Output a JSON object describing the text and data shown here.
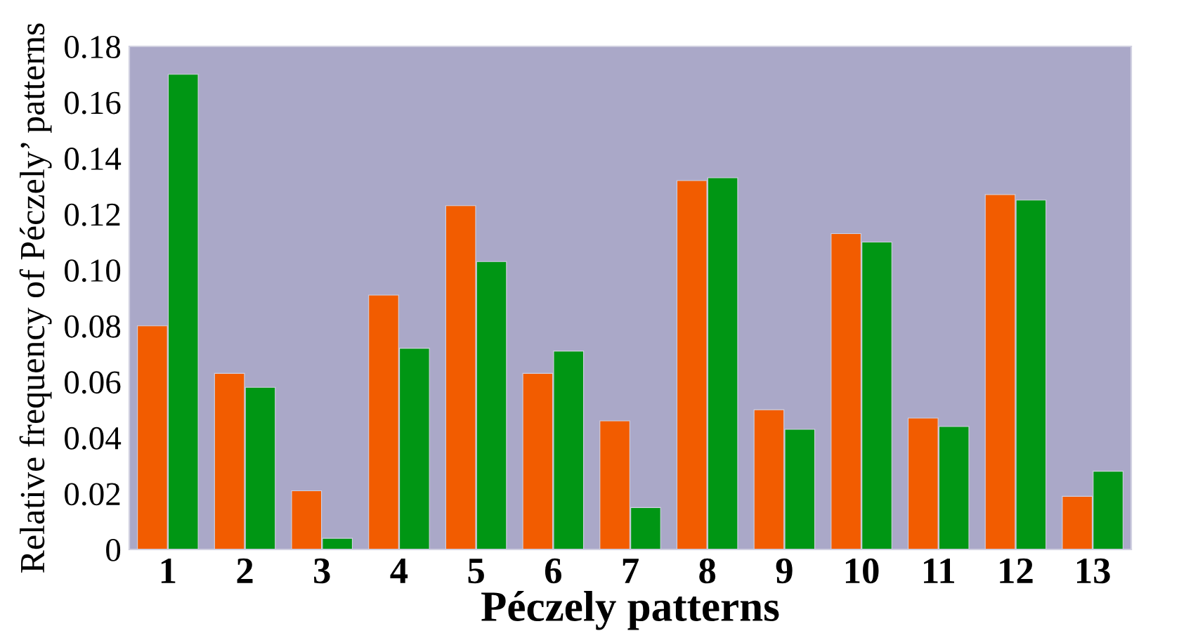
{
  "chart_data": {
    "type": "bar",
    "xlabel": "Péczely patterns",
    "ylabel": "Relative frequency of Péczely’ patterns",
    "categories": [
      "1",
      "2",
      "3",
      "4",
      "5",
      "6",
      "7",
      "8",
      "9",
      "10",
      "11",
      "12",
      "13"
    ],
    "series": [
      {
        "color": "#f25c00",
        "values": [
          0.08,
          0.063,
          0.021,
          0.091,
          0.123,
          0.063,
          0.046,
          0.132,
          0.05,
          0.113,
          0.047,
          0.127,
          0.019
        ]
      },
      {
        "color": "#009614",
        "values": [
          0.17,
          0.058,
          0.004,
          0.072,
          0.103,
          0.071,
          0.015,
          0.133,
          0.043,
          0.11,
          0.044,
          0.125,
          0.028
        ]
      }
    ],
    "ylim": [
      0,
      0.18
    ],
    "yticks": [
      {
        "value": 0,
        "label": "0"
      },
      {
        "value": 0.02,
        "label": "0.02"
      },
      {
        "value": 0.04,
        "label": "0.04"
      },
      {
        "value": 0.06,
        "label": "0.06"
      },
      {
        "value": 0.08,
        "label": "0.08"
      },
      {
        "value": 0.1,
        "label": "0.10"
      },
      {
        "value": 0.12,
        "label": "0.12"
      },
      {
        "value": 0.14,
        "label": "0.14"
      },
      {
        "value": 0.16,
        "label": "0.16"
      },
      {
        "value": 0.18,
        "label": "0.18"
      }
    ],
    "grid": false
  }
}
